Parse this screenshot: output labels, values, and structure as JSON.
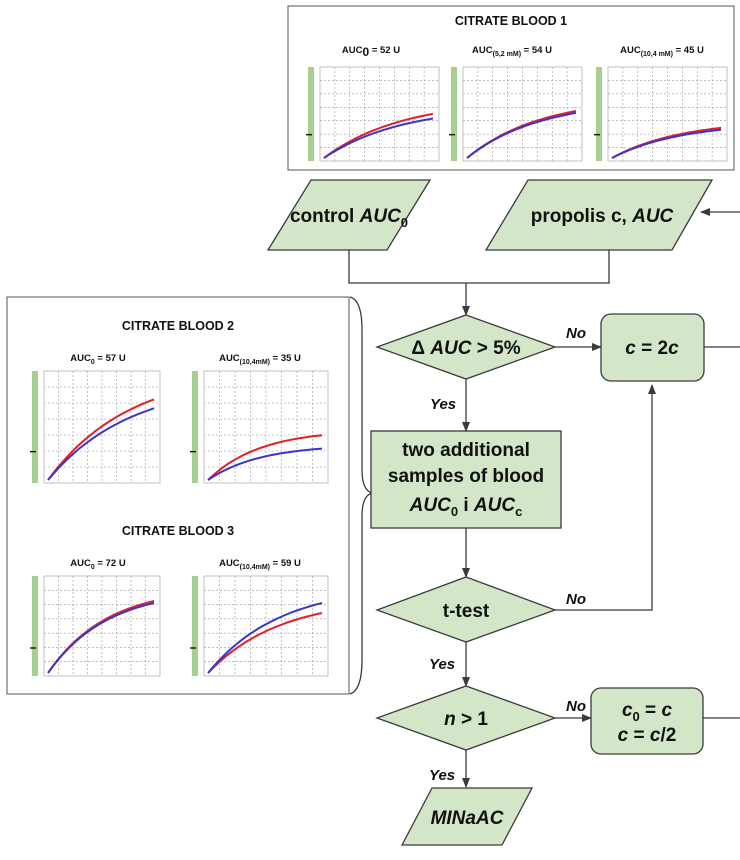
{
  "panels": {
    "blood1": {
      "title": "CITRATE BLOOD 1",
      "graphs": [
        {
          "auc_prefix": "AUC",
          "auc_sub": "0",
          "auc_value": " = 52 U"
        },
        {
          "auc_prefix": "AUC",
          "auc_sub": "(5,2 mM)",
          "auc_value": " = 54 U"
        },
        {
          "auc_prefix": "AUC",
          "auc_sub": "(10,4 mM)",
          "auc_value": " = 45 U"
        }
      ]
    },
    "blood2": {
      "title": "CITRATE BLOOD 2",
      "graphs": [
        {
          "auc_prefix": "AUC",
          "auc_sub": "0",
          "auc_value": " = 57 U"
        },
        {
          "auc_prefix": "AUC",
          "auc_sub": "(10,4mM)",
          "auc_value": " = 35 U"
        }
      ]
    },
    "blood3": {
      "title": "CITRATE BLOOD 3",
      "graphs": [
        {
          "auc_prefix": "AUC",
          "auc_sub": "0",
          "auc_value": " = 72 U"
        },
        {
          "auc_prefix": "AUC",
          "auc_sub": "(10,4mM)",
          "auc_value": " = 59 U"
        }
      ]
    }
  },
  "nodes": {
    "control": {
      "pre": "control ",
      "it": "AUC",
      "sub": "0"
    },
    "propolis": {
      "pre": "propolis c, ",
      "it": "AUC"
    },
    "delta": {
      "pre": "Δ ",
      "it": "AUC",
      "post": " > 5%"
    },
    "c2c": {
      "it1": "c",
      "mid": " = 2",
      "it2": "c"
    },
    "samples": {
      "line1": "two additional",
      "line2": "samples of blood",
      "a_it": "AUC",
      "a_sub": "0",
      "mid": " i ",
      "b_it": "AUC",
      "b_sub": "c"
    },
    "ttest": {
      "text": "t-test"
    },
    "n": {
      "it": "n",
      "post": " > 1"
    },
    "c0": {
      "it1": "c",
      "sub": "0",
      "mid": " = ",
      "it2": "c"
    },
    "chalf": {
      "it1": "c",
      "mid": " = ",
      "it2": "c",
      "post": "/2"
    },
    "minaac": {
      "text": "MINaAC"
    }
  },
  "edge_labels": {
    "no1": "No",
    "yes1": "Yes",
    "no2": "No",
    "yes2": "Yes",
    "no3": "No",
    "yes3": "Yes"
  },
  "colors": {
    "node_fill": "#d3e6c7",
    "series_control": "#e0202a",
    "series_propolis": "#3b35c8"
  }
}
